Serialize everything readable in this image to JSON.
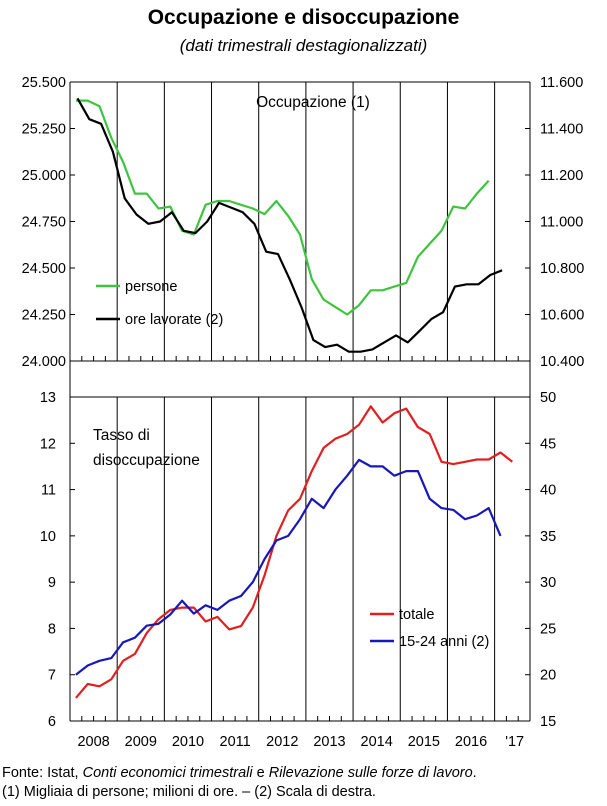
{
  "header": {
    "title": "Occupazione e disoccupazione",
    "subtitle": "(dati trimestrali destagionalizzati)"
  },
  "chart_data": [
    {
      "type": "line",
      "title": "Occupazione (1)",
      "left_axis": {
        "ylim": [
          24000,
          25500
        ],
        "ticks": [
          "24.000",
          "24.250",
          "24.500",
          "24.750",
          "25.000",
          "25.250",
          "25.500"
        ]
      },
      "right_axis": {
        "ylim": [
          10400,
          11600
        ],
        "ticks": [
          "10.400",
          "10.600",
          "10.800",
          "11.000",
          "11.200",
          "11.400",
          "11.600"
        ]
      },
      "x_labels": [
        "2008",
        "2009",
        "2010",
        "2011",
        "2012",
        "2013",
        "2014",
        "2015",
        "2016",
        "'17"
      ],
      "quarters": 39,
      "legend_placement": "bottom-left",
      "series": [
        {
          "name": "persone",
          "axis": "left",
          "color": "#3ec43e",
          "values": [
            25400,
            25400,
            25370,
            25200,
            25070,
            24900,
            24900,
            24820,
            24830,
            24700,
            24680,
            24840,
            24860,
            24860,
            24840,
            24820,
            24790,
            24860,
            24780,
            24680,
            24440,
            24330,
            24290,
            24250,
            24300,
            24380,
            24380,
            24400,
            24420,
            24560,
            24630,
            24700,
            24830,
            24820,
            24900,
            24970
          ]
        },
        {
          "name": "ore lavorate (2)",
          "axis": "right",
          "color": "#000000",
          "values": [
            11530,
            11440,
            11420,
            11300,
            11100,
            11030,
            10990,
            11000,
            11040,
            10960,
            10950,
            11000,
            11080,
            11060,
            11040,
            10990,
            10870,
            10860,
            10750,
            10630,
            10490,
            10460,
            10470,
            10440,
            10440,
            10450,
            10480,
            10510,
            10480,
            10530,
            10580,
            10610,
            10720,
            10730,
            10730,
            10770,
            10790
          ]
        }
      ]
    },
    {
      "type": "line",
      "title": "Tasso di disoccupazione",
      "left_axis": {
        "ylim": [
          6,
          13
        ],
        "ticks": [
          "6",
          "7",
          "8",
          "9",
          "10",
          "11",
          "12",
          "13"
        ]
      },
      "right_axis": {
        "ylim": [
          15,
          50
        ],
        "ticks": [
          "15",
          "20",
          "25",
          "30",
          "35",
          "40",
          "45",
          "50"
        ]
      },
      "x_labels": [
        "2008",
        "2009",
        "2010",
        "2011",
        "2012",
        "2013",
        "2014",
        "2015",
        "2016",
        "'17"
      ],
      "quarters": 39,
      "legend_placement": "bottom-right",
      "series": [
        {
          "name": "totale",
          "axis": "left",
          "color": "#e02020",
          "values": [
            6.5,
            6.8,
            6.75,
            6.9,
            7.3,
            7.45,
            7.9,
            8.2,
            8.4,
            8.45,
            8.45,
            8.15,
            8.25,
            7.98,
            8.05,
            8.45,
            9.15,
            10.0,
            10.55,
            10.8,
            11.4,
            11.9,
            12.1,
            12.2,
            12.4,
            12.8,
            12.45,
            12.65,
            12.75,
            12.35,
            12.2,
            11.6,
            11.55,
            11.6,
            11.65,
            11.65,
            11.8,
            11.6
          ]
        },
        {
          "name": "15-24 anni (2)",
          "axis": "right",
          "color": "#1818b8",
          "values": [
            20,
            21,
            21.5,
            21.8,
            23.5,
            24,
            25.3,
            25.5,
            26.5,
            28,
            26.6,
            27.5,
            27,
            28,
            28.5,
            30,
            32.5,
            34.5,
            35,
            36.8,
            39,
            38,
            40,
            41.5,
            43.2,
            42.5,
            42.5,
            41.5,
            42,
            42,
            39,
            38,
            37.8,
            36.8,
            37.2,
            38,
            35
          ]
        }
      ]
    }
  ],
  "footer": {
    "line1_a": "Fonte: Istat, ",
    "line1_b": "Conti economici trimestrali",
    "line1_c": " e ",
    "line1_d": "Rilevazione sulle forze di lavoro",
    "line1_e": ".",
    "line2": "(1) Migliaia di persone; milioni di ore. – (2) Scala di destra."
  }
}
